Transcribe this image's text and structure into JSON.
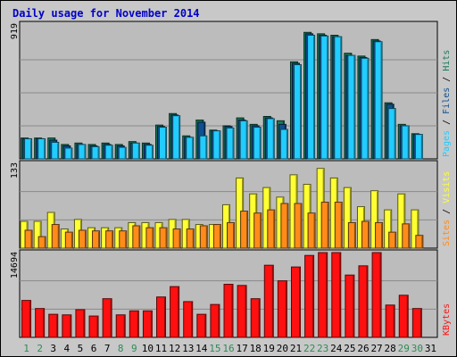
{
  "chart_data": {
    "type": "bar",
    "title": "Daily usage for November 2014",
    "colors": {
      "background": "#c8c8c8",
      "title": "#0000c8",
      "hits": "#1a7a5a",
      "files": "#0f4f8f",
      "pages": "#22ccff",
      "visits": "#ffff33",
      "sites": "#ff8c1a",
      "kbytes": "#ff1010",
      "weekend": "#2e8b57",
      "weekday": "#000000"
    },
    "categories": [
      "1",
      "2",
      "3",
      "4",
      "5",
      "6",
      "7",
      "8",
      "9",
      "10",
      "11",
      "12",
      "13",
      "14",
      "15",
      "16",
      "17",
      "18",
      "19",
      "20",
      "21",
      "22",
      "23",
      "24",
      "25",
      "26",
      "27",
      "28",
      "29",
      "30",
      "31"
    ],
    "weekend_days": [
      "1",
      "2",
      "8",
      "9",
      "15",
      "16",
      "22",
      "23",
      "29",
      "30"
    ],
    "panels": [
      {
        "name": "hits-files-pages",
        "ymax_label": "919",
        "ymax": 919,
        "legend": [
          {
            "text": "Pages",
            "color": "#22ccff"
          },
          {
            "text": " / ",
            "color": "#000000"
          },
          {
            "text": "Files",
            "color": "#0f4f8f"
          },
          {
            "text": " / ",
            "color": "#000000"
          },
          {
            "text": "Hits",
            "color": "#1a7a5a"
          }
        ],
        "series": [
          {
            "key": "hits",
            "values": [
              145,
              145,
              145,
              100,
              110,
              100,
              110,
              100,
              120,
              110,
              235,
              315,
              160,
              270,
              200,
              230,
              285,
              240,
              295,
              265,
              675,
              880,
              870,
              860,
              735,
              715,
              830,
              390,
              240,
              175,
              0
            ]
          },
          {
            "key": "files",
            "values": [
              140,
              140,
              130,
              90,
              100,
              90,
              100,
              90,
              110,
              100,
              225,
              305,
              150,
              255,
              195,
              225,
              270,
              230,
              285,
              240,
              665,
              870,
              860,
              850,
              720,
              705,
              820,
              380,
              230,
              170,
              0
            ]
          },
          {
            "key": "pages",
            "values": [
              140,
              140,
              115,
              75,
              100,
              85,
              95,
              80,
              110,
              95,
              220,
              300,
              150,
              160,
              195,
              215,
              265,
              220,
              280,
              205,
              655,
              860,
              855,
              850,
              720,
              700,
              815,
              350,
              230,
              170,
              0
            ]
          }
        ]
      },
      {
        "name": "visits-sites",
        "ymax_label": "133",
        "ymax": 133,
        "legend": [
          {
            "text": "Sites",
            "color": "#ff8c1a"
          },
          {
            "text": " / ",
            "color": "#000000"
          },
          {
            "text": "Visits",
            "color": "#ffff33"
          }
        ],
        "series": [
          {
            "key": "visits",
            "values": [
              42,
              42,
              56,
              30,
              45,
              32,
              32,
              32,
              40,
              40,
              40,
              45,
              45,
              37,
              37,
              68,
              110,
              85,
              95,
              80,
              115,
              100,
              125,
              110,
              95,
              65,
              90,
              60,
              85,
              60,
              0
            ]
          },
          {
            "key": "sites",
            "values": [
              28,
              18,
              37,
              25,
              28,
              27,
              27,
              27,
              35,
              32,
              32,
              30,
              30,
              35,
              37,
              40,
              58,
              55,
              60,
              70,
              70,
              55,
              72,
              72,
              40,
              42,
              40,
              25,
              38,
              20,
              0
            ]
          }
        ]
      },
      {
        "name": "kbytes",
        "ymax_label": "14694",
        "ymax": 14694,
        "legend": [
          {
            "text": "KBytes",
            "color": "#ff1010"
          }
        ],
        "series": [
          {
            "key": "kbytes",
            "values": [
              6400,
              5000,
              4000,
              3900,
              4800,
              3700,
              6700,
              3900,
              4600,
              4600,
              7000,
              8800,
              6200,
              4000,
              5700,
              9200,
              9000,
              6700,
              12500,
              9800,
              12200,
              14200,
              14694,
              14694,
              10800,
              12400,
              14694,
              5600,
              7300,
              5000,
              0
            ]
          }
        ]
      }
    ]
  }
}
